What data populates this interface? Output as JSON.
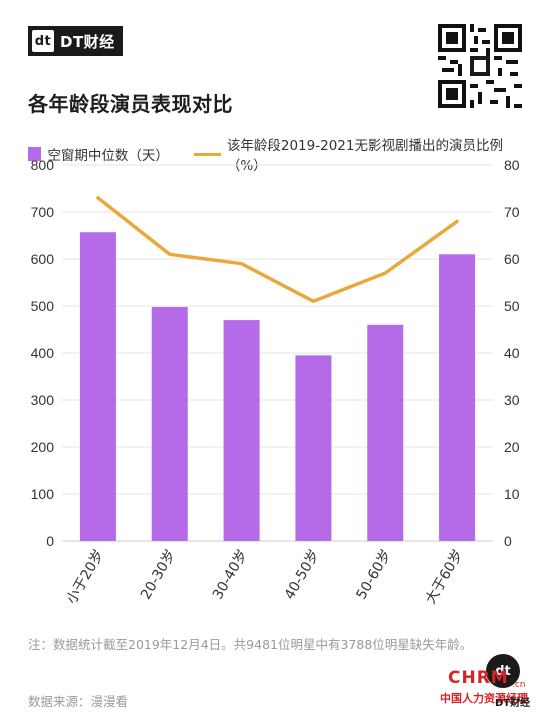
{
  "brand": {
    "logo_mark": "dt",
    "logo_text": "DT财经"
  },
  "title": "各年龄段演员表现对比",
  "legend": {
    "bar_label": "空窗期中位数（天）",
    "line_label": "该年龄段2019-2021无影视剧播出的演员比例（%）"
  },
  "colors": {
    "bar": "#b56be8",
    "line": "#e8a93c",
    "grid": "#e6e6e6",
    "axis_text": "#333333"
  },
  "chart_data": {
    "type": "bar",
    "categories": [
      "小于20岁",
      "20-30岁",
      "30-40岁",
      "40-50岁",
      "50-60岁",
      "大于60岁"
    ],
    "series": [
      {
        "name": "空窗期中位数（天）",
        "type": "bar",
        "axis": "left",
        "values": [
          657,
          498,
          470,
          395,
          460,
          610
        ]
      },
      {
        "name": "该年龄段2019-2021无影视剧播出的演员比例（%）",
        "type": "line",
        "axis": "right",
        "values": [
          73,
          61,
          59,
          51,
          57,
          68
        ]
      }
    ],
    "y_left": {
      "min": 0,
      "max": 800,
      "ticks": [
        0,
        100,
        200,
        300,
        400,
        500,
        600,
        700,
        800
      ]
    },
    "y_right": {
      "min": 0,
      "max": 80,
      "ticks": [
        0,
        10,
        20,
        30,
        40,
        50,
        60,
        70,
        80
      ]
    },
    "grid": true,
    "legend_position": "top"
  },
  "note": "注：数据统计截至2019年12月4日。共9481位明星中有3788位明星缺失年龄。",
  "source": "数据来源：漫漫看",
  "watermark": {
    "mark": "dt",
    "text": "CHRM",
    "sub": "中国人力资源经理",
    "cn": ".cn",
    "dt": "DT财经"
  }
}
